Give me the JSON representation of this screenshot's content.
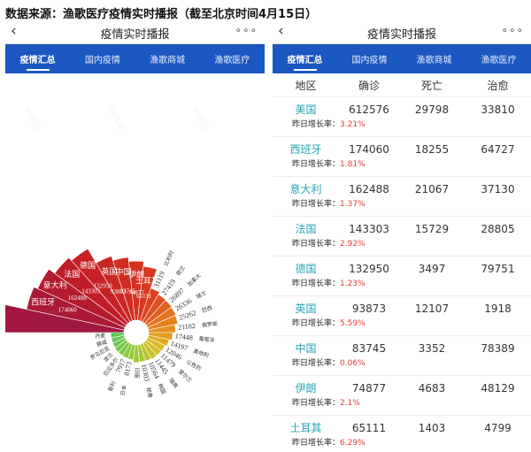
{
  "caption": "数据来源：渔歌医疗疫情实时播报（截至北京时间4月15日）",
  "app": {
    "back_icon": "chevron-left-icon",
    "title": "疫情实时播报",
    "more": "∘∘∘"
  },
  "tabs": [
    {
      "label": "疫情汇总",
      "active": true
    },
    {
      "label": "国内疫情",
      "active": false
    },
    {
      "label": "渔歌商城",
      "active": false
    },
    {
      "label": "渔歌医疗",
      "active": false
    }
  ],
  "chart_data": {
    "type": "rose",
    "watermark": "YUGE",
    "categories": [
      "美国",
      "西班牙",
      "意大利",
      "法国",
      "德国",
      "英国",
      "中国",
      "伊朗",
      "土耳其",
      "比利时",
      "荷兰",
      "加拿大",
      "瑞士",
      "巴西",
      "俄罗斯",
      "葡萄牙",
      "奥地利",
      "以色列",
      "爱尔兰",
      "瑞典",
      "韩国",
      "秘鲁",
      "印度",
      "日本",
      "智利",
      "厄瓜多尔",
      "波兰",
      "罗马尼亚",
      "挪威",
      "丹麦"
    ],
    "values": [
      612576,
      174060,
      162488,
      143303,
      132950,
      93873,
      83745,
      74877,
      65111,
      31119,
      27419,
      26897,
      26336,
      25262,
      21102,
      17448,
      14197,
      12046,
      11479,
      11445,
      10564,
      10303,
      10453,
      8173,
      7917,
      7603,
      7582,
      6879,
      6623,
      6681
    ],
    "value_labels": [
      "612576",
      "174060",
      "162488",
      "143303",
      "132950",
      "93873",
      "83745",
      "74877",
      "65111",
      "31119",
      "27419",
      "26897",
      "26336",
      "25262",
      "21102",
      "17448",
      "14197",
      "12046",
      "11479",
      "11445",
      "10564",
      "10303",
      "",
      "8173",
      "7917",
      "",
      "",
      "",
      "",
      ""
    ],
    "name_labels": [
      "美国",
      "西班牙",
      "意大利",
      "法国",
      "德国",
      "英国",
      "中国",
      "伊朗",
      "土耳其",
      "比利时",
      "荷兰",
      "加拿大",
      "瑞士",
      "巴西",
      "俄罗斯",
      "葡萄牙",
      "奥地利",
      "以色列",
      "爱尔兰",
      "瑞典",
      "韩国",
      "秘鲁",
      "印度",
      "日本",
      "智利",
      "厄瓜多尔",
      "波兰",
      "罗马尼亚",
      "挪威",
      "丹麦"
    ]
  },
  "table": {
    "headers": [
      "地区",
      "确诊",
      "死亡",
      "治愈"
    ],
    "growth_label": "昨日增长率：",
    "rows": [
      {
        "name": "美国",
        "confirmed": "612576",
        "deaths": "29798",
        "cured": "33810",
        "growth": "3.21%"
      },
      {
        "name": "西班牙",
        "confirmed": "174060",
        "deaths": "18255",
        "cured": "64727",
        "growth": "1.81%"
      },
      {
        "name": "意大利",
        "confirmed": "162488",
        "deaths": "21067",
        "cured": "37130",
        "growth": "1.37%"
      },
      {
        "name": "法国",
        "confirmed": "143303",
        "deaths": "15729",
        "cured": "28805",
        "growth": "2.92%"
      },
      {
        "name": "德国",
        "confirmed": "132950",
        "deaths": "3497",
        "cured": "79751",
        "growth": "1.23%"
      },
      {
        "name": "英国",
        "confirmed": "93873",
        "deaths": "12107",
        "cured": "1918",
        "growth": "5.59%"
      },
      {
        "name": "中国",
        "confirmed": "83745",
        "deaths": "3352",
        "cured": "78389",
        "growth": "0.06%"
      },
      {
        "name": "伊朗",
        "confirmed": "74877",
        "deaths": "4683",
        "cured": "48129",
        "growth": "2.1%"
      },
      {
        "name": "土耳其",
        "confirmed": "65111",
        "deaths": "1403",
        "cured": "4799",
        "growth": "6.29%"
      }
    ]
  },
  "colors": {
    "tab_bar": "#1b57c0",
    "country_name": "#2aa4b5",
    "growth_value": "#e53935"
  }
}
